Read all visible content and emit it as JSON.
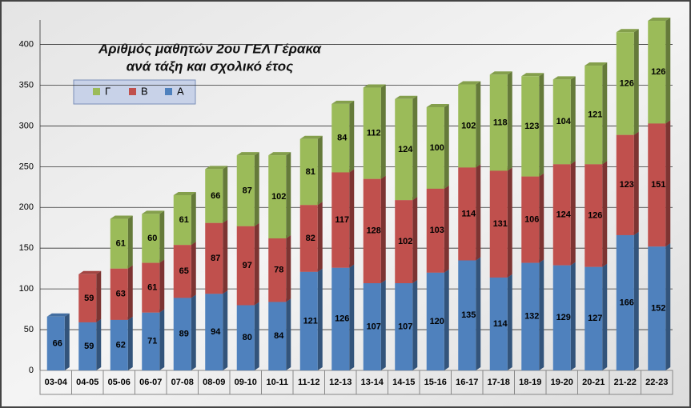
{
  "chart_data": {
    "type": "stacked_bar",
    "title": "Αριθμός  μαθητών 2ου ΓΕΛ Γέρακα",
    "subtitle": "ανά τάξη και σχολικό έτος",
    "categories": [
      "03-04",
      "04-05",
      "05-06",
      "06-07",
      "07-08",
      "08-09",
      "09-10",
      "10-11",
      "11-12",
      "12-13",
      "13-14",
      "14-15",
      "15-16",
      "16-17",
      "17-18",
      "18-19",
      "19-20",
      "20-21",
      "21-22",
      "22-23"
    ],
    "series": [
      {
        "name": "A",
        "color": "#4f81bd",
        "values": [
          66,
          59,
          62,
          71,
          89,
          94,
          80,
          84,
          121,
          126,
          107,
          107,
          120,
          135,
          114,
          132,
          129,
          127,
          166,
          152
        ]
      },
      {
        "name": "B",
        "color": "#c0504d",
        "values": [
          null,
          59,
          63,
          61,
          65,
          87,
          97,
          78,
          82,
          117,
          128,
          102,
          103,
          114,
          131,
          106,
          124,
          126,
          123,
          151
        ]
      },
      {
        "name": "Γ",
        "color": "#9bbb59",
        "values": [
          null,
          null,
          61,
          60,
          61,
          66,
          87,
          102,
          81,
          84,
          112,
          124,
          100,
          102,
          118,
          123,
          104,
          121,
          126,
          126
        ]
      }
    ],
    "ylim": [
      0,
      430
    ],
    "yticks": [
      0,
      50,
      100,
      150,
      200,
      250,
      300,
      350,
      400
    ],
    "grid": true
  }
}
